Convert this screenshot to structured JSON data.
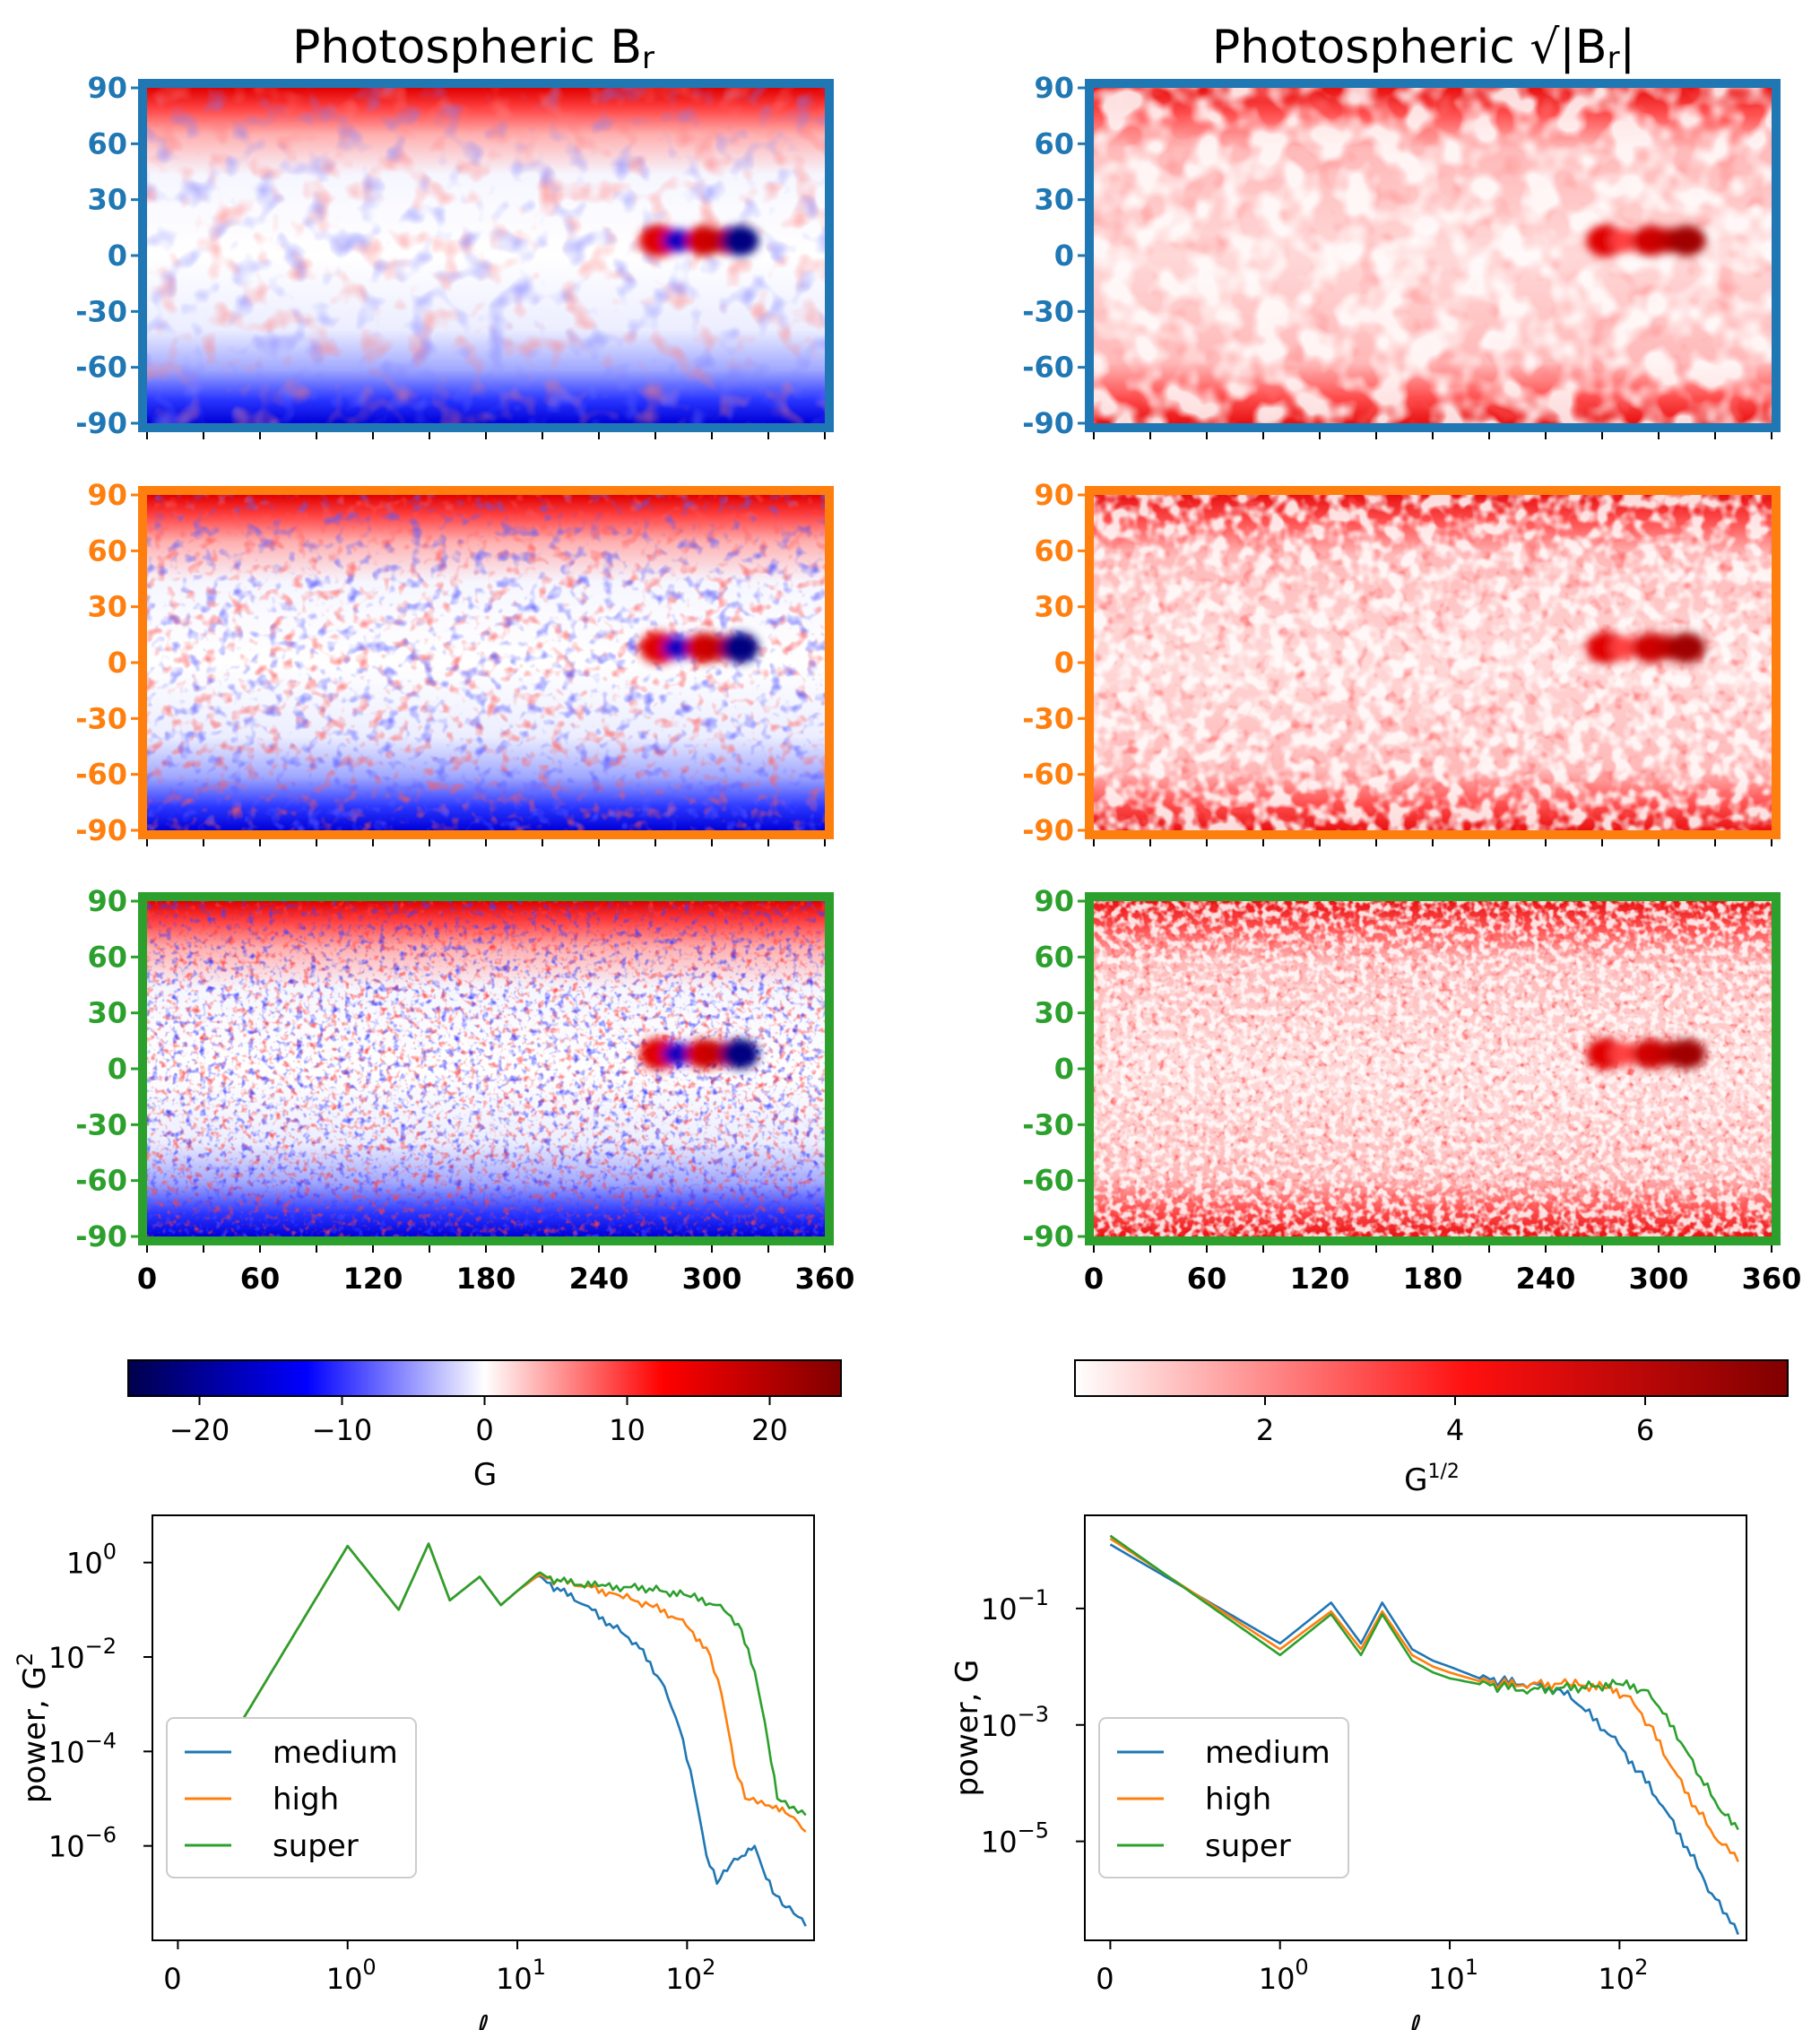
{
  "figure": {
    "left_title": "Photospheric B",
    "left_title_sub": "r",
    "right_title": "Photospheric √|B",
    "right_title_sub": "r",
    "right_title_close": "|"
  },
  "colors": {
    "medium": "#1f77b4",
    "high": "#ff7f0e",
    "super": "#2ca02c"
  },
  "chart_data": [
    {
      "type": "heatmap",
      "id": "br-maps",
      "title": "Photospheric Br",
      "rows": [
        "medium",
        "high",
        "super"
      ],
      "ytick_labels": [
        "90",
        "60",
        "30",
        "0",
        "-30",
        "-60",
        "-90"
      ],
      "xtick_labels": [
        "0",
        "60",
        "120",
        "180",
        "240",
        "300",
        "360"
      ],
      "xlim": [
        0,
        360
      ],
      "ylim": [
        -90,
        90
      ],
      "colormap": "seismic",
      "active_region": {
        "longitude": [
          265,
          320
        ],
        "latitude": [
          0,
          15
        ]
      }
    },
    {
      "type": "heatmap",
      "id": "sqrt-br-maps",
      "title": "Photospheric sqrt(|Br|)",
      "rows": [
        "medium",
        "high",
        "super"
      ],
      "ytick_labels": [
        "90",
        "60",
        "30",
        "0",
        "-30",
        "-60",
        "-90"
      ],
      "xtick_labels": [
        "0",
        "60",
        "120",
        "180",
        "240",
        "300",
        "360"
      ],
      "xlim": [
        0,
        360
      ],
      "ylim": [
        -90,
        90
      ],
      "colormap": "reds"
    },
    {
      "type": "colorbar",
      "id": "cbar-left",
      "range": [
        -25,
        25
      ],
      "ticks": [
        -20,
        -10,
        0,
        10,
        20
      ],
      "tick_labels": [
        "−20",
        "−10",
        "0",
        "10",
        "20"
      ],
      "label": "G"
    },
    {
      "type": "colorbar",
      "id": "cbar-right",
      "range": [
        0,
        7.5
      ],
      "ticks": [
        2,
        4,
        6
      ],
      "tick_labels": [
        "2",
        "4",
        "6"
      ],
      "label": "G",
      "label_sup": "1/2"
    },
    {
      "type": "line",
      "id": "power-left",
      "xscale": "symlog",
      "yscale": "log",
      "xlabel": "ℓ",
      "ylabel": "power, G",
      "ylabel_sup": "2",
      "ylim_exp": [
        -8,
        1
      ],
      "xtick_labels": [
        "0",
        "10",
        "10",
        "10"
      ],
      "xtick_sups": [
        "",
        "0",
        "1",
        "2"
      ],
      "ytick_labels": [
        "10",
        "10",
        "10",
        "10"
      ],
      "ytick_sups": [
        "0",
        "−2",
        "−4",
        "−6"
      ],
      "ytick_values": [
        0,
        -2,
        -4,
        -6
      ],
      "legend": [
        "medium",
        "high",
        "super"
      ],
      "legend_position": "lower-left",
      "series": [
        {
          "name": "medium",
          "points": [
            [
              0,
              -5.6
            ],
            [
              1,
              0.35
            ],
            [
              2,
              -1
            ],
            [
              3,
              0.4
            ],
            [
              4,
              -0.8
            ],
            [
              6,
              -0.3
            ],
            [
              8,
              -0.9
            ],
            [
              10,
              -0.6
            ],
            [
              13,
              -0.3
            ],
            [
              18,
              -0.6
            ],
            [
              25,
              -0.9
            ],
            [
              35,
              -1.3
            ],
            [
              50,
              -1.7
            ],
            [
              70,
              -2.5
            ],
            [
              90,
              -3.5
            ],
            [
              110,
              -4.8
            ],
            [
              130,
              -6.2
            ],
            [
              150,
              -6.8
            ],
            [
              180,
              -6.4
            ],
            [
              220,
              -6.2
            ],
            [
              250,
              -6.0
            ],
            [
              280,
              -6.5
            ],
            [
              320,
              -7.0
            ],
            [
              380,
              -7.3
            ],
            [
              450,
              -7.5
            ],
            [
              500,
              -7.7
            ]
          ]
        },
        {
          "name": "high",
          "points": [
            [
              0,
              -5.6
            ],
            [
              1,
              0.35
            ],
            [
              2,
              -1
            ],
            [
              3,
              0.4
            ],
            [
              4,
              -0.8
            ],
            [
              6,
              -0.3
            ],
            [
              8,
              -0.9
            ],
            [
              10,
              -0.6
            ],
            [
              13,
              -0.3
            ],
            [
              18,
              -0.4
            ],
            [
              25,
              -0.5
            ],
            [
              40,
              -0.7
            ],
            [
              60,
              -0.9
            ],
            [
              90,
              -1.2
            ],
            [
              130,
              -1.8
            ],
            [
              160,
              -2.8
            ],
            [
              190,
              -4.3
            ],
            [
              220,
              -5.0
            ],
            [
              260,
              -5.1
            ],
            [
              320,
              -5.2
            ],
            [
              380,
              -5.3
            ],
            [
              450,
              -5.5
            ],
            [
              500,
              -5.7
            ]
          ]
        },
        {
          "name": "super",
          "points": [
            [
              0,
              -5.6
            ],
            [
              1,
              0.35
            ],
            [
              2,
              -1
            ],
            [
              3,
              0.4
            ],
            [
              4,
              -0.8
            ],
            [
              6,
              -0.3
            ],
            [
              8,
              -0.9
            ],
            [
              10,
              -0.6
            ],
            [
              13,
              -0.25
            ],
            [
              18,
              -0.4
            ],
            [
              30,
              -0.5
            ],
            [
              60,
              -0.55
            ],
            [
              100,
              -0.7
            ],
            [
              150,
              -0.9
            ],
            [
              200,
              -1.3
            ],
            [
              250,
              -2.3
            ],
            [
              300,
              -3.8
            ],
            [
              340,
              -5.0
            ],
            [
              400,
              -5.2
            ],
            [
              450,
              -5.3
            ],
            [
              500,
              -5.35
            ]
          ]
        }
      ]
    },
    {
      "type": "line",
      "id": "power-right",
      "xscale": "symlog",
      "yscale": "log",
      "xlabel": "ℓ",
      "ylabel": "power, G",
      "ylabel_sup": "",
      "ylim_exp": [
        -6.7,
        0.6
      ],
      "xtick_labels": [
        "0",
        "10",
        "10",
        "10"
      ],
      "xtick_sups": [
        "",
        "0",
        "1",
        "2"
      ],
      "ytick_labels": [
        "10",
        "10",
        "10"
      ],
      "ytick_sups": [
        "−1",
        "−3",
        "−5"
      ],
      "ytick_values": [
        -1,
        -3,
        -5
      ],
      "legend": [
        "medium",
        "high",
        "super"
      ],
      "legend_position": "lower-left",
      "series": [
        {
          "name": "medium",
          "points": [
            [
              0,
              0.1
            ],
            [
              1,
              -1.6
            ],
            [
              2,
              -0.9
            ],
            [
              3,
              -1.6
            ],
            [
              4,
              -0.9
            ],
            [
              6,
              -1.7
            ],
            [
              8,
              -1.9
            ],
            [
              10,
              -2.0
            ],
            [
              15,
              -2.2
            ],
            [
              20,
              -2.25
            ],
            [
              30,
              -2.3
            ],
            [
              45,
              -2.4
            ],
            [
              60,
              -2.7
            ],
            [
              90,
              -3.2
            ],
            [
              130,
              -3.8
            ],
            [
              180,
              -4.4
            ],
            [
              250,
              -5.1
            ],
            [
              350,
              -5.9
            ],
            [
              450,
              -6.4
            ],
            [
              500,
              -6.6
            ]
          ]
        },
        {
          "name": "high",
          "points": [
            [
              0,
              0.2
            ],
            [
              1,
              -1.7
            ],
            [
              2,
              -1.05
            ],
            [
              3,
              -1.7
            ],
            [
              4,
              -1.05
            ],
            [
              6,
              -1.8
            ],
            [
              8,
              -2.0
            ],
            [
              10,
              -2.1
            ],
            [
              15,
              -2.25
            ],
            [
              20,
              -2.3
            ],
            [
              30,
              -2.3
            ],
            [
              50,
              -2.3
            ],
            [
              80,
              -2.35
            ],
            [
              110,
              -2.5
            ],
            [
              150,
              -3.0
            ],
            [
              200,
              -3.7
            ],
            [
              280,
              -4.4
            ],
            [
              380,
              -5.0
            ],
            [
              450,
              -5.2
            ],
            [
              500,
              -5.35
            ]
          ]
        },
        {
          "name": "super",
          "points": [
            [
              0,
              0.25
            ],
            [
              1,
              -1.8
            ],
            [
              2,
              -1.1
            ],
            [
              3,
              -1.8
            ],
            [
              4,
              -1.1
            ],
            [
              6,
              -1.9
            ],
            [
              8,
              -2.1
            ],
            [
              10,
              -2.2
            ],
            [
              15,
              -2.3
            ],
            [
              20,
              -2.35
            ],
            [
              30,
              -2.4
            ],
            [
              60,
              -2.35
            ],
            [
              100,
              -2.3
            ],
            [
              140,
              -2.4
            ],
            [
              180,
              -2.8
            ],
            [
              230,
              -3.3
            ],
            [
              300,
              -3.9
            ],
            [
              400,
              -4.5
            ],
            [
              500,
              -4.8
            ]
          ]
        }
      ]
    }
  ]
}
